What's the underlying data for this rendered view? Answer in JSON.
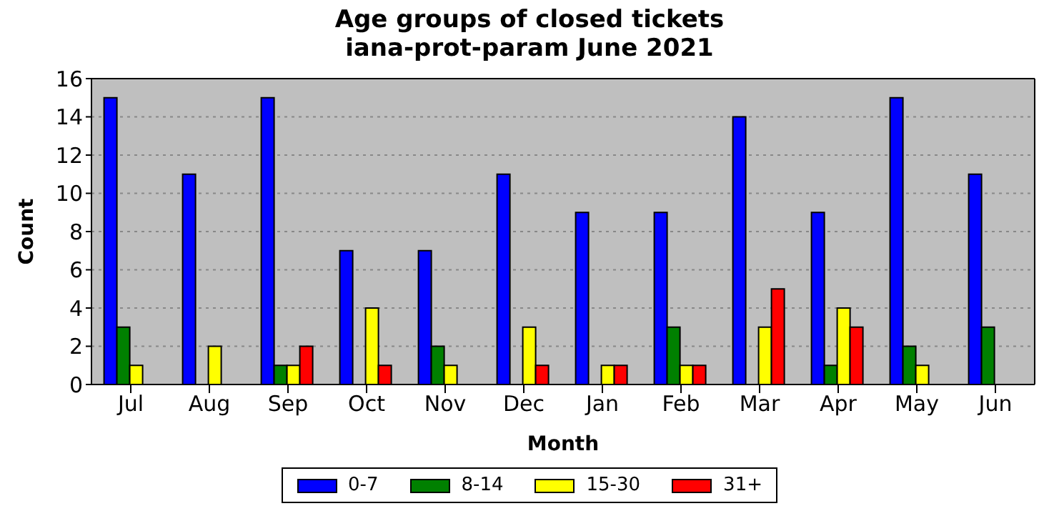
{
  "chart_data": {
    "type": "bar",
    "title": "Age groups of closed tickets",
    "subtitle": "iana-prot-param June 2021",
    "xlabel": "Month",
    "ylabel": "Count",
    "categories": [
      "Jul",
      "Aug",
      "Sep",
      "Oct",
      "Nov",
      "Dec",
      "Jan",
      "Feb",
      "Mar",
      "Apr",
      "May",
      "Jun"
    ],
    "series": [
      {
        "name": "0-7",
        "color": "#0000ff",
        "values": [
          15,
          11,
          15,
          7,
          7,
          11,
          9,
          9,
          14,
          9,
          15,
          11
        ]
      },
      {
        "name": "8-14",
        "color": "#008000",
        "values": [
          3,
          0,
          1,
          0,
          2,
          0,
          0,
          3,
          0,
          1,
          2,
          3
        ]
      },
      {
        "name": "15-30",
        "color": "#ffff00",
        "values": [
          1,
          2,
          1,
          4,
          1,
          3,
          1,
          1,
          3,
          4,
          1,
          0
        ]
      },
      {
        "name": "31+",
        "color": "#ff0000",
        "values": [
          0,
          0,
          2,
          1,
          0,
          1,
          1,
          1,
          5,
          3,
          0,
          0
        ]
      }
    ],
    "ylim": [
      0,
      16
    ],
    "yticks": [
      0,
      2,
      4,
      6,
      8,
      10,
      12,
      14,
      16
    ],
    "grid": "y",
    "legend": "bottom"
  }
}
